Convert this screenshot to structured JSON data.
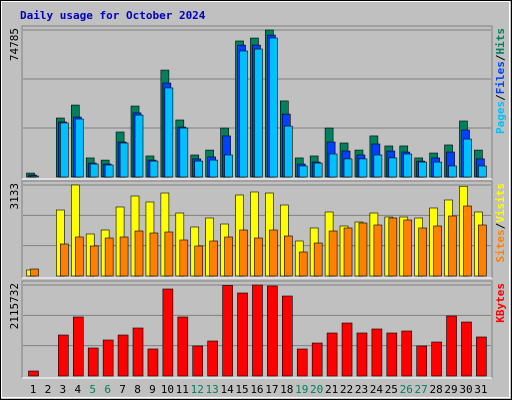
{
  "chart_data": [
    {
      "type": "bar",
      "title": "Daily usage for October 2024",
      "categories": [
        "1",
        "2",
        "3",
        "4",
        "5",
        "6",
        "7",
        "8",
        "9",
        "10",
        "11",
        "12",
        "13",
        "14",
        "15",
        "16",
        "17",
        "18",
        "19",
        "20",
        "21",
        "22",
        "23",
        "24",
        "25",
        "26",
        "27",
        "28",
        "29",
        "30",
        "31"
      ],
      "category_colors": [
        "#000000",
        "#000000",
        "#000000",
        "#000000",
        "#00805C",
        "#00805C",
        "#000000",
        "#000000",
        "#000000",
        "#000000",
        "#000000",
        "#00805C",
        "#00805C",
        "#000000",
        "#000000",
        "#000000",
        "#000000",
        "#000000",
        "#00805C",
        "#00805C",
        "#000000",
        "#000000",
        "#000000",
        "#000000",
        "#000000",
        "#00805C",
        "#00805C",
        "#000000",
        "#000000",
        "#000000",
        "#000000"
      ],
      "separator": "/",
      "ylim": [
        0,
        74785
      ],
      "yticks": [
        74785
      ],
      "series": [
        {
          "name": "Hits",
          "color": "#00805C",
          "values": [
            2000,
            0,
            30000,
            36600,
            9700,
            8600,
            22900,
            36100,
            10700,
            54400,
            29000,
            11200,
            13700,
            24900,
            69200,
            70700,
            74785,
            38700,
            9700,
            10700,
            24900,
            17300,
            13700,
            20900,
            15800,
            15800,
            9700,
            12200,
            16300,
            28500,
            13700
          ]
        },
        {
          "name": "Files",
          "color": "#0040FF",
          "values": [
            1000,
            0,
            28000,
            30500,
            7100,
            6600,
            17800,
            32600,
            8600,
            47800,
            25400,
            9200,
            10200,
            20900,
            67100,
            67100,
            72200,
            32000,
            6600,
            7600,
            17800,
            13200,
            11200,
            16800,
            13200,
            12700,
            8100,
            9700,
            12700,
            23900,
            9200
          ]
        },
        {
          "name": "Pages",
          "color": "#00C0FF",
          "values": [
            500,
            0,
            27500,
            29500,
            6600,
            6100,
            17300,
            31500,
            8100,
            45300,
            24900,
            8100,
            8600,
            11200,
            64100,
            65100,
            70700,
            25900,
            5600,
            7100,
            11700,
            9200,
            9200,
            11200,
            9700,
            11700,
            7600,
            7600,
            5600,
            19300,
            5600
          ]
        }
      ]
    },
    {
      "type": "bar",
      "ylim": [
        0,
        3133
      ],
      "yticks": [
        3133
      ],
      "series": [
        {
          "name": "Visits",
          "color": "#FFFF00",
          "values": [
            207,
            0,
            2272,
            3133,
            1446,
            1584,
            2376,
            2754,
            2548,
            2857,
            2169,
            1687,
            1997,
            1790,
            2789,
            2892,
            2857,
            2444,
            1205,
            1653,
            2204,
            1722,
            1859,
            2169,
            2031,
            2031,
            1997,
            2341,
            2617,
            3090,
            2204
          ]
        },
        {
          "name": "Sites",
          "color": "#FF8000",
          "values": [
            241,
            0,
            1102,
            1343,
            1033,
            1308,
            1343,
            1549,
            1480,
            1515,
            1240,
            1033,
            1205,
            1343,
            1584,
            1308,
            1584,
            1377,
            826,
            1136,
            1549,
            1653,
            1825,
            1756,
            1997,
            1928,
            1653,
            1722,
            2066,
            2410,
            1756
          ]
        }
      ]
    },
    {
      "type": "bar",
      "ylim": [
        0,
        2115732
      ],
      "yticks": [
        2115732
      ],
      "series": [
        {
          "name": "KBytes",
          "color": "#FF0000",
          "values": [
            116000,
            0,
            953000,
            1372000,
            651000,
            837000,
            953000,
            1116000,
            628000,
            2023000,
            1372000,
            698000,
            814000,
            2105000,
            1930000,
            2115732,
            2093000,
            1860000,
            628000,
            767000,
            1000000,
            1232000,
            1000000,
            1093000,
            1000000,
            1046000,
            698000,
            790000,
            1395000,
            1255000,
            907000
          ]
        }
      ]
    }
  ]
}
